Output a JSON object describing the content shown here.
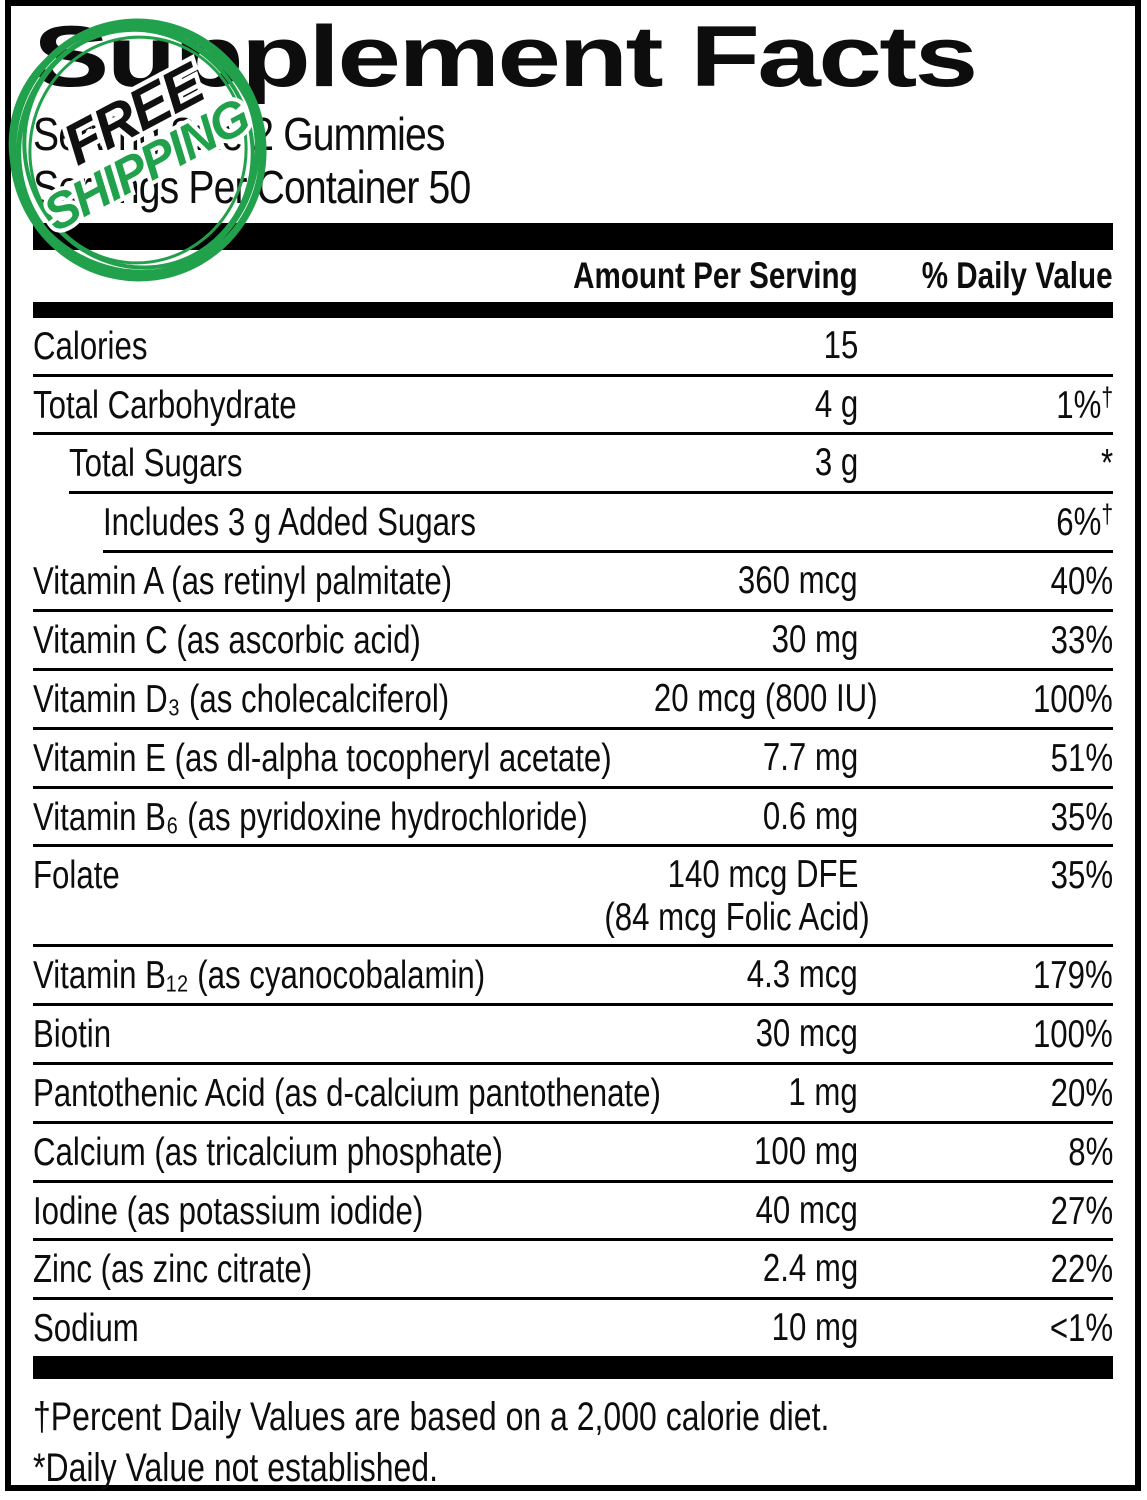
{
  "title": "Supplement Facts",
  "serving": {
    "size_line": "Serving Size 2 Gummies",
    "per_container_line": "Servings Per Container 50"
  },
  "header": {
    "amount": "Amount Per Serving",
    "dv": "% Daily Value"
  },
  "rows": [
    {
      "label": "Calories",
      "amount": "15",
      "dv": "",
      "indent": 0
    },
    {
      "label": "Total Carbohydrate",
      "amount": "4 g",
      "dv": "1%",
      "dv_sup": "†",
      "indent": 0
    },
    {
      "label": "Total Sugars",
      "amount": "3 g",
      "dv": "*",
      "indent": 1
    },
    {
      "label": "Includes 3 g Added Sugars",
      "amount": "",
      "dv": "6%",
      "dv_sup": "†",
      "indent": 2
    },
    {
      "label": "Vitamin A (as retinyl palmitate)",
      "amount": "360 mcg",
      "dv": "40%",
      "indent": 0
    },
    {
      "label": "Vitamin C (as ascorbic acid)",
      "amount": "30 mg",
      "dv": "33%",
      "indent": 0
    },
    {
      "label": "Vitamin D₃ (as cholecalciferol)",
      "amount": "20 mcg (800 IU)",
      "dv": "100%",
      "indent": 0
    },
    {
      "label": "Vitamin E (as dl-alpha tocopheryl acetate)",
      "amount": "7.7 mg",
      "dv": "51%",
      "indent": 0
    },
    {
      "label": "Vitamin B₆ (as pyridoxine hydrochloride)",
      "amount": "0.6 mg",
      "dv": "35%",
      "indent": 0
    },
    {
      "label": "Folate",
      "amount": "140 mcg DFE",
      "amount2": "(84 mcg Folic Acid)",
      "dv": "35%",
      "indent": 0
    },
    {
      "label": "Vitamin B₁₂ (as cyanocobalamin)",
      "amount": "4.3 mcg",
      "dv": "179%",
      "indent": 0
    },
    {
      "label": "Biotin",
      "amount": "30 mcg",
      "dv": "100%",
      "indent": 0
    },
    {
      "label": "Pantothenic Acid (as d-calcium pantothenate)",
      "amount": "1 mg",
      "dv": "20%",
      "indent": 0
    },
    {
      "label": "Calcium (as tricalcium phosphate)",
      "amount": "100 mg",
      "dv": "8%",
      "indent": 0
    },
    {
      "label": "Iodine (as potassium iodide)",
      "amount": "40 mcg",
      "dv": "27%",
      "indent": 0
    },
    {
      "label": "Zinc (as zinc citrate)",
      "amount": "2.4 mg",
      "dv": "22%",
      "indent": 0
    },
    {
      "label": "Sodium",
      "amount": "10 mg",
      "dv": "<1%",
      "indent": 0
    }
  ],
  "footnotes": [
    "†Percent Daily Values are based on a 2,000 calorie diet.",
    "*Daily Value not established."
  ],
  "stamp": {
    "line1": "FREE",
    "line2": "SHIPPING",
    "green": "#22a14c",
    "ink": "#101010"
  }
}
